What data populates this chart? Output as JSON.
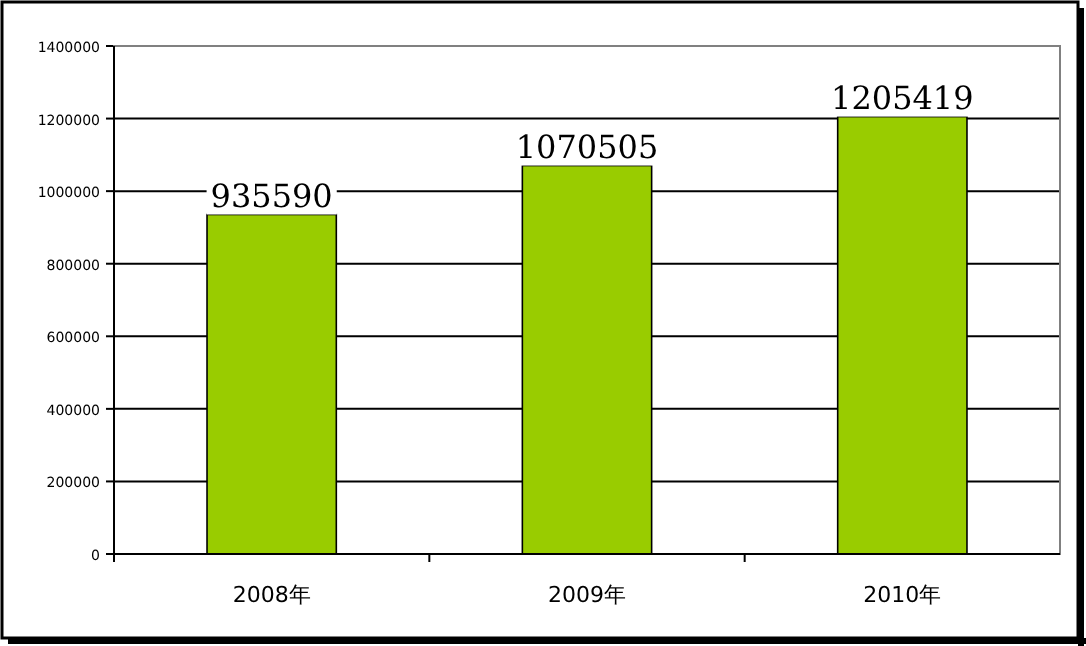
{
  "chart_data": {
    "type": "bar",
    "categories": [
      "2008年",
      "2009年",
      "2010年"
    ],
    "values": [
      935590,
      1070505,
      1205419
    ],
    "color": "#99cc00",
    "ylim": [
      0,
      1400000
    ],
    "yticks": [
      0,
      200000,
      400000,
      600000,
      800000,
      1000000,
      1200000,
      1400000
    ],
    "grid": "y",
    "data_labels": true
  }
}
